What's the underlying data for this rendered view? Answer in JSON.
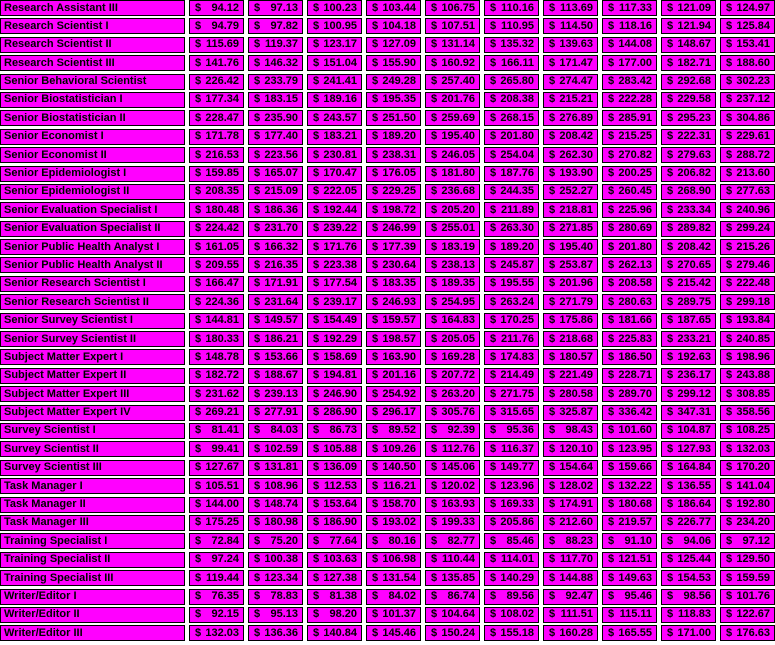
{
  "colors": {
    "cell_background": "#ff00ff",
    "gap_background": "#ffffff",
    "cell_border": "#000000",
    "text": "#000000"
  },
  "table": {
    "currency_symbol": "$",
    "rate_column_count": 10,
    "rows": [
      {
        "title": "Research Assistant III",
        "values": [
          "94.12",
          "97.13",
          "100.23",
          "103.44",
          "106.75",
          "110.16",
          "113.69",
          "117.33",
          "121.09",
          "124.97"
        ]
      },
      {
        "title": "Research Scientist I",
        "values": [
          "94.79",
          "97.82",
          "100.95",
          "104.18",
          "107.51",
          "110.95",
          "114.50",
          "118.16",
          "121.94",
          "125.84"
        ]
      },
      {
        "title": "Research Scientist II",
        "values": [
          "115.69",
          "119.37",
          "123.17",
          "127.09",
          "131.14",
          "135.32",
          "139.63",
          "144.08",
          "148.67",
          "153.41"
        ]
      },
      {
        "title": "Research Scientist III",
        "values": [
          "141.76",
          "146.32",
          "151.04",
          "155.90",
          "160.92",
          "166.11",
          "171.47",
          "177.00",
          "182.71",
          "188.60"
        ]
      },
      {
        "title": "Senior Behavioral Scientist",
        "values": [
          "226.42",
          "233.79",
          "241.41",
          "249.28",
          "257.40",
          "265.80",
          "274.47",
          "283.42",
          "292.68",
          "302.23"
        ]
      },
      {
        "title": "Senior Biostatistician I",
        "values": [
          "177.34",
          "183.15",
          "189.16",
          "195.35",
          "201.76",
          "208.38",
          "215.21",
          "222.28",
          "229.58",
          "237.12"
        ]
      },
      {
        "title": "Senior Biostatistician II",
        "values": [
          "228.47",
          "235.90",
          "243.57",
          "251.50",
          "259.69",
          "268.15",
          "276.89",
          "285.91",
          "295.23",
          "304.86"
        ]
      },
      {
        "title": "Senior Economist I",
        "values": [
          "171.78",
          "177.40",
          "183.21",
          "189.20",
          "195.40",
          "201.80",
          "208.42",
          "215.25",
          "222.31",
          "229.61"
        ]
      },
      {
        "title": "Senior Economist II",
        "values": [
          "216.53",
          "223.56",
          "230.81",
          "238.31",
          "246.05",
          "254.04",
          "262.30",
          "270.82",
          "279.63",
          "288.72"
        ]
      },
      {
        "title": "Senior Epidemiologist I",
        "values": [
          "159.85",
          "165.07",
          "170.47",
          "176.05",
          "181.80",
          "187.76",
          "193.90",
          "200.25",
          "206.82",
          "213.60"
        ]
      },
      {
        "title": "Senior Epidemiologist II",
        "values": [
          "208.35",
          "215.09",
          "222.05",
          "229.25",
          "236.68",
          "244.35",
          "252.27",
          "260.45",
          "268.90",
          "277.63"
        ]
      },
      {
        "title": "Senior Evaluation Specialist I",
        "values": [
          "180.48",
          "186.36",
          "192.44",
          "198.72",
          "205.20",
          "211.89",
          "218.81",
          "225.96",
          "233.34",
          "240.96"
        ]
      },
      {
        "title": "Senior Evaluation Specialist II",
        "values": [
          "224.42",
          "231.70",
          "239.22",
          "246.99",
          "255.01",
          "263.30",
          "271.85",
          "280.69",
          "289.82",
          "299.24"
        ]
      },
      {
        "title": "Senior Public Health Analyst I",
        "values": [
          "161.05",
          "166.32",
          "171.76",
          "177.39",
          "183.19",
          "189.20",
          "195.40",
          "201.80",
          "208.42",
          "215.26"
        ]
      },
      {
        "title": "Senior Public Health Analyst II",
        "values": [
          "209.55",
          "216.35",
          "223.38",
          "230.64",
          "238.13",
          "245.87",
          "253.87",
          "262.13",
          "270.65",
          "279.46"
        ]
      },
      {
        "title": "Senior Research Scientist I",
        "values": [
          "166.47",
          "171.91",
          "177.54",
          "183.35",
          "189.35",
          "195.55",
          "201.96",
          "208.58",
          "215.42",
          "222.48"
        ]
      },
      {
        "title": "Senior Research Scientist II",
        "values": [
          "224.36",
          "231.64",
          "239.17",
          "246.93",
          "254.95",
          "263.24",
          "271.79",
          "280.63",
          "289.75",
          "299.18"
        ]
      },
      {
        "title": "Senior Survey Scientist I",
        "values": [
          "144.81",
          "149.57",
          "154.49",
          "159.57",
          "164.83",
          "170.25",
          "175.86",
          "181.66",
          "187.65",
          "193.84"
        ]
      },
      {
        "title": "Senior Survey Scientist II",
        "values": [
          "180.33",
          "186.21",
          "192.29",
          "198.57",
          "205.05",
          "211.76",
          "218.68",
          "225.83",
          "233.21",
          "240.85"
        ]
      },
      {
        "title": "Subject Matter Expert I",
        "values": [
          "148.78",
          "153.66",
          "158.69",
          "163.90",
          "169.28",
          "174.83",
          "180.57",
          "186.50",
          "192.63",
          "198.96"
        ]
      },
      {
        "title": "Subject Matter Expert II",
        "values": [
          "182.72",
          "188.67",
          "194.81",
          "201.16",
          "207.72",
          "214.49",
          "221.49",
          "228.71",
          "236.17",
          "243.88"
        ]
      },
      {
        "title": "Subject Matter Expert III",
        "values": [
          "231.62",
          "239.13",
          "246.90",
          "254.92",
          "263.20",
          "271.75",
          "280.58",
          "289.70",
          "299.12",
          "308.85"
        ]
      },
      {
        "title": "Subject Matter Expert IV",
        "values": [
          "269.21",
          "277.91",
          "286.90",
          "296.17",
          "305.76",
          "315.65",
          "325.87",
          "336.42",
          "347.31",
          "358.56"
        ]
      },
      {
        "title": "Survey Scientist I",
        "values": [
          "81.41",
          "84.03",
          "86.73",
          "89.52",
          "92.39",
          "95.36",
          "98.43",
          "101.60",
          "104.87",
          "108.25"
        ]
      },
      {
        "title": "Survey Scientist II",
        "values": [
          "99.41",
          "102.59",
          "105.88",
          "109.26",
          "112.76",
          "116.37",
          "120.10",
          "123.95",
          "127.93",
          "132.03"
        ]
      },
      {
        "title": "Survey Scientist III",
        "values": [
          "127.67",
          "131.81",
          "136.09",
          "140.50",
          "145.06",
          "149.77",
          "154.64",
          "159.66",
          "164.84",
          "170.20"
        ]
      },
      {
        "title": "Task Manager I",
        "values": [
          "105.51",
          "108.96",
          "112.53",
          "116.21",
          "120.02",
          "123.96",
          "128.02",
          "132.22",
          "136.55",
          "141.04"
        ]
      },
      {
        "title": "Task Manager II",
        "values": [
          "144.00",
          "148.74",
          "153.64",
          "158.70",
          "163.93",
          "169.33",
          "174.91",
          "180.68",
          "186.64",
          "192.80"
        ]
      },
      {
        "title": "Task Manager III",
        "values": [
          "175.25",
          "180.98",
          "186.90",
          "193.02",
          "199.33",
          "205.86",
          "212.60",
          "219.57",
          "226.77",
          "234.20"
        ]
      },
      {
        "title": "Training Specialist I",
        "values": [
          "72.84",
          "75.20",
          "77.64",
          "80.16",
          "82.77",
          "85.46",
          "88.23",
          "91.10",
          "94.06",
          "97.12"
        ]
      },
      {
        "title": "Training Specialist II",
        "values": [
          "97.24",
          "100.38",
          "103.63",
          "106.98",
          "110.44",
          "114.01",
          "117.70",
          "121.51",
          "125.44",
          "129.50"
        ]
      },
      {
        "title": "Training Specialist III",
        "values": [
          "119.44",
          "123.34",
          "127.38",
          "131.54",
          "135.85",
          "140.29",
          "144.88",
          "149.63",
          "154.53",
          "159.59"
        ]
      },
      {
        "title": "Writer/Editor I",
        "values": [
          "76.35",
          "78.83",
          "81.38",
          "84.02",
          "86.74",
          "89.56",
          "92.47",
          "95.46",
          "98.56",
          "101.76"
        ]
      },
      {
        "title": "Writer/Editor II",
        "values": [
          "92.15",
          "95.13",
          "98.20",
          "101.37",
          "104.64",
          "108.02",
          "111.51",
          "115.11",
          "118.83",
          "122.67"
        ]
      },
      {
        "title": "Writer/Editor III",
        "values": [
          "132.03",
          "136.36",
          "140.84",
          "145.46",
          "150.24",
          "155.18",
          "160.28",
          "165.55",
          "171.00",
          "176.63"
        ]
      }
    ]
  }
}
